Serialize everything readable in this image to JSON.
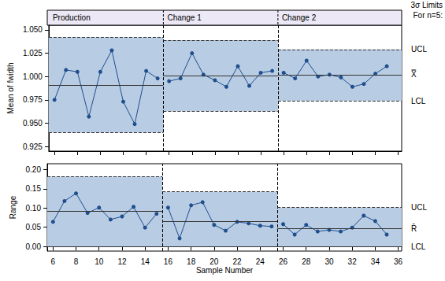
{
  "chart_data": [
    {
      "type": "line",
      "y_label": "Mean of fwidth",
      "color": "#1f4e8c",
      "marker": "circle",
      "line_style": "solid",
      "annotations": [
        "3σ Limits",
        "For n=5:"
      ],
      "limit_labels": {
        "ucl": "UCL",
        "cl": "X̿",
        "lcl": "LCL"
      },
      "tick_labels": "y",
      "grid": false,
      "x": [
        6,
        7,
        8,
        9,
        10,
        11,
        12,
        13,
        14,
        15,
        16,
        17,
        18,
        19,
        20,
        21,
        22,
        23,
        24,
        25,
        26,
        27,
        28,
        29,
        30,
        31,
        32,
        33,
        34,
        35
      ],
      "values": [
        0.975,
        1.007,
        1.005,
        0.957,
        1.005,
        1.028,
        0.973,
        0.949,
        1.006,
        0.998,
        0.995,
        0.998,
        1.025,
        1.002,
        0.996,
        0.989,
        1.011,
        0.99,
        1.004,
        1.006,
        1.004,
        0.998,
        1.017,
        1.0,
        1.002,
        0.999,
        0.989,
        0.992,
        1.003,
        1.011
      ],
      "xlim": [
        5.5,
        36.3
      ],
      "xticks": [
        6,
        8,
        10,
        12,
        14,
        16,
        18,
        20,
        22,
        24,
        26,
        28,
        30,
        32,
        34,
        36
      ],
      "ylim": [
        0.92,
        1.055
      ],
      "yticks": [
        {
          "value": 0.925,
          "label": "0.925"
        },
        {
          "value": 0.95,
          "label": "0.950"
        },
        {
          "value": 0.975,
          "label": "0.975"
        },
        {
          "value": 1.0,
          "label": "1.000"
        },
        {
          "value": 1.025,
          "label": "1.025"
        },
        {
          "value": 1.05,
          "label": "1.050"
        }
      ],
      "stages": [
        {
          "name": "Production",
          "start": 5.5,
          "end": 15.5,
          "ucl": 1.042,
          "cl": 0.991,
          "lcl": 0.94
        },
        {
          "name": "Change 1",
          "start": 15.5,
          "end": 25.5,
          "ucl": 1.039,
          "cl": 1.001,
          "lcl": 0.963
        },
        {
          "name": "Change 2",
          "start": 25.5,
          "end": 36.3,
          "ucl": 1.029,
          "cl": 1.002,
          "lcl": 0.974
        }
      ]
    },
    {
      "type": "line",
      "y_label": "Range",
      "x_label": "Sample Number",
      "color": "#1f4e8c",
      "marker": "circle",
      "line_style": "solid",
      "limit_labels": {
        "ucl": "UCL",
        "cl": "R̄",
        "lcl": "LCL"
      },
      "grid": false,
      "x": [
        6,
        7,
        8,
        9,
        10,
        11,
        12,
        13,
        14,
        15,
        16,
        17,
        18,
        19,
        20,
        21,
        22,
        23,
        24,
        25,
        26,
        27,
        28,
        29,
        30,
        31,
        32,
        33,
        34,
        35
      ],
      "values": [
        0.064,
        0.118,
        0.138,
        0.087,
        0.101,
        0.07,
        0.078,
        0.103,
        0.049,
        0.085,
        0.101,
        0.021,
        0.107,
        0.115,
        0.056,
        0.041,
        0.064,
        0.06,
        0.054,
        0.052,
        0.058,
        0.031,
        0.056,
        0.039,
        0.043,
        0.039,
        0.049,
        0.08,
        0.066,
        0.031
      ],
      "xlim": [
        5.5,
        36.3
      ],
      "xticks": [
        6,
        8,
        10,
        12,
        14,
        16,
        18,
        20,
        22,
        24,
        26,
        28,
        30,
        32,
        34,
        36
      ],
      "ylim": [
        -0.012,
        0.215
      ],
      "yticks": [
        {
          "value": 0,
          "label": "0.00"
        },
        {
          "value": 0.05,
          "label": "0.05"
        },
        {
          "value": 0.1,
          "label": "0.10"
        },
        {
          "value": 0.15,
          "label": "0.15"
        },
        {
          "value": 0.2,
          "label": "0.20"
        }
      ],
      "stages": [
        {
          "start": 5.5,
          "end": 15.5,
          "ucl": 0.182,
          "cl": 0.091,
          "lcl": 0
        },
        {
          "start": 15.5,
          "end": 25.5,
          "ucl": 0.142,
          "cl": 0.065,
          "lcl": 0
        },
        {
          "start": 25.5,
          "end": 36.3,
          "ucl": 0.101,
          "cl": 0.047,
          "lcl": 0
        }
      ]
    }
  ]
}
